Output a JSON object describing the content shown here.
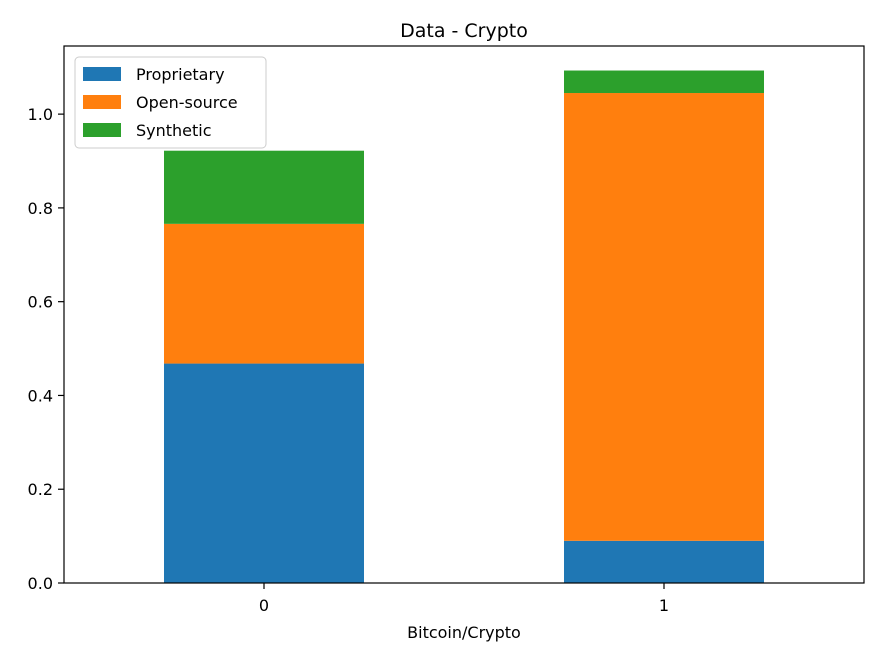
{
  "chart_data": {
    "type": "bar",
    "stacked": true,
    "title": "Data - Crypto",
    "xlabel": "Bitcoin/Crypto",
    "ylabel": "",
    "categories": [
      "0",
      "1"
    ],
    "series": [
      {
        "name": "Proprietary",
        "color": "#1f77b4",
        "values": [
          0.468,
          0.09
        ]
      },
      {
        "name": "Open-source",
        "color": "#ff7f0e",
        "values": [
          0.298,
          0.955
        ]
      },
      {
        "name": "Synthetic",
        "color": "#2ca02c",
        "values": [
          0.156,
          0.048
        ]
      }
    ],
    "ylim": [
      0,
      1.1453
    ],
    "yticks": [
      "0.0",
      "0.2",
      "0.4",
      "0.6",
      "0.8",
      "1.0"
    ],
    "legend_position": "top-left",
    "grid": false
  }
}
